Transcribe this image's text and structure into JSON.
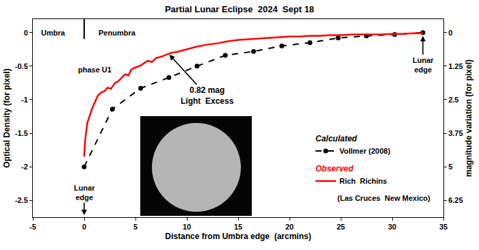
{
  "chart_data": {
    "type": "line",
    "title": "Partial Lunar Eclipse  2024  Sept 18",
    "xlabel": "Distance from Umbra edge  (arcmins)",
    "ylabel": "Optical Density (for pixel)",
    "y2label": "magnitude variation (for pixel)",
    "xlim": [
      -5,
      35
    ],
    "xticks": [
      -5,
      0,
      5,
      10,
      15,
      20,
      25,
      30,
      35
    ],
    "ylim": [
      -2.75,
      0.2
    ],
    "yticks": [
      -2.5,
      -2,
      -1.5,
      -1,
      -0.5,
      0
    ],
    "y2lim": [
      6.875,
      -0.5
    ],
    "y2ticks": [
      0,
      1.25,
      2.5,
      3.75,
      5,
      6.25
    ],
    "grid": false,
    "legend": "lower right",
    "umbra_edge": 0,
    "series": [
      {
        "name": "Vollmer (2008)",
        "group": "Calculated",
        "color": "#000000",
        "line_style": "dash",
        "marker": "circle",
        "x": [
          0,
          2.75,
          5.5,
          8.25,
          11,
          13.75,
          16.5,
          19.25,
          22,
          24.75,
          27.5,
          30.25,
          33
        ],
        "values": [
          -2.0,
          -1.14,
          -0.83,
          -0.67,
          -0.5,
          -0.34,
          -0.28,
          -0.2,
          -0.15,
          -0.08,
          -0.05,
          -0.03,
          0
        ]
      },
      {
        "name": "Rich  Richins",
        "group": "Observed",
        "color": "#ff0000",
        "line_style": "solid",
        "marker": "none",
        "x": [
          0,
          0.1,
          0.3,
          0.5,
          0.8,
          1.0,
          1.3,
          1.6,
          2.0,
          2.3,
          2.6,
          3.0,
          3.3,
          3.6,
          4.0,
          4.3,
          4.6,
          5.0,
          5.4,
          5.8,
          6.2,
          6.6,
          7.0,
          7.5,
          8.0,
          8.5,
          9.0,
          9.5,
          10,
          11,
          12,
          13,
          14,
          15,
          16,
          17,
          18,
          19,
          20,
          21,
          22,
          23,
          24,
          25,
          26,
          27,
          28,
          29,
          30,
          31,
          32,
          33
        ],
        "values": [
          -1.85,
          -1.6,
          -1.35,
          -1.25,
          -1.12,
          -1.05,
          -0.95,
          -0.9,
          -0.87,
          -0.82,
          -0.84,
          -0.75,
          -0.73,
          -0.68,
          -0.62,
          -0.64,
          -0.55,
          -0.52,
          -0.5,
          -0.46,
          -0.42,
          -0.44,
          -0.38,
          -0.36,
          -0.33,
          -0.3,
          -0.29,
          -0.27,
          -0.25,
          -0.21,
          -0.18,
          -0.16,
          -0.13,
          -0.11,
          -0.1,
          -0.09,
          -0.08,
          -0.07,
          -0.06,
          -0.06,
          -0.05,
          -0.05,
          -0.04,
          -0.04,
          -0.03,
          -0.03,
          -0.03,
          -0.03,
          -0.02,
          -0.02,
          -0.01,
          -0.01
        ]
      }
    ],
    "annotations": [
      {
        "text": "Umbra",
        "x": -3.0,
        "y": 0
      },
      {
        "text": "Penumbra",
        "x": 3.2,
        "y": 0
      },
      {
        "text": "phase U1",
        "x": 1.0,
        "y": -0.55
      },
      {
        "text": "(Las Cruces  New Mexico)",
        "x": 29.2,
        "y": -2.47
      }
    ],
    "callouts": [
      {
        "text": "Lunar\nedge",
        "x": 0,
        "y": -2.72
      },
      {
        "text": "Lunar\nedge",
        "x": 33,
        "y": -0.05
      },
      {
        "text": "0.82 mag\nLight  Excess",
        "x": 8.3,
        "y": -0.33
      }
    ]
  }
}
